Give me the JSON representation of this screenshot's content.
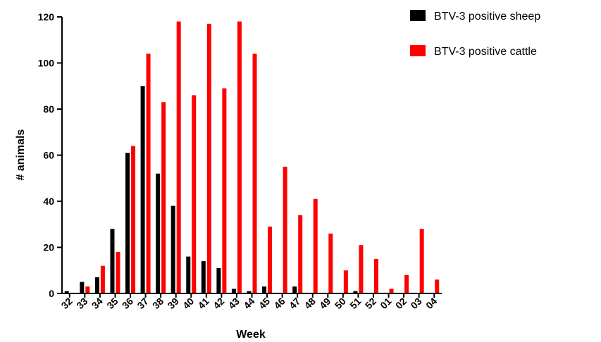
{
  "chart_data": {
    "type": "bar",
    "title": "",
    "xlabel": "Week",
    "ylabel": "# animals",
    "ylim": [
      0,
      120
    ],
    "yticks": [
      "0",
      "20",
      "40",
      "60",
      "80",
      "100",
      "120"
    ],
    "grid": false,
    "legend_position": "top-right",
    "categories": [
      "32",
      "33",
      "34",
      "35",
      "36",
      "37",
      "38",
      "39",
      "40",
      "41",
      "42",
      "43",
      "44",
      "45",
      "46",
      "47",
      "48",
      "49",
      "50",
      "51",
      "52",
      "01",
      "02",
      "03",
      "04"
    ],
    "series": [
      {
        "name": "BTV-3 positive sheep",
        "color": "#000000",
        "values": [
          1,
          5,
          7,
          28,
          61,
          90,
          52,
          38,
          16,
          14,
          11,
          2,
          1,
          3,
          0,
          3,
          0,
          0,
          0,
          1,
          0,
          0,
          0,
          0,
          0
        ]
      },
      {
        "name": "BTV-3 positive cattle",
        "color": "#ff0000",
        "values": [
          0,
          3,
          12,
          18,
          64,
          104,
          83,
          118,
          86,
          117,
          89,
          118,
          104,
          29,
          55,
          34,
          41,
          26,
          10,
          21,
          15,
          2,
          8,
          28,
          6
        ]
      }
    ]
  }
}
